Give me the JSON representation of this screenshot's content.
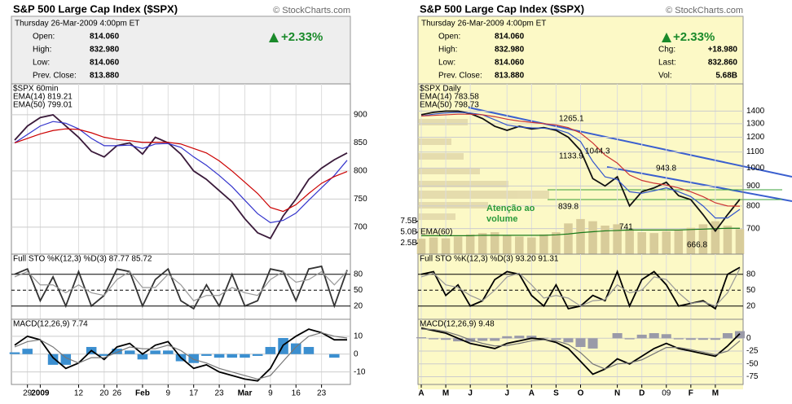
{
  "chart_data": [
    {
      "type": "line",
      "title": "S&P 500 Large Cap Index ($SPX)",
      "source": "© StockCharts.com",
      "date": "Thursday 26-Mar-2009 4:00pm ET",
      "quote": {
        "labels": [
          "Open:",
          "High:",
          "Low:",
          "Prev. Close:"
        ],
        "values": [
          "814.060",
          "832.980",
          "814.060",
          "813.880"
        ]
      },
      "change": "+2.33%",
      "categories": [
        null,
        "29",
        "2009",
        null,
        null,
        "12",
        null,
        "20",
        "26",
        null,
        "Feb",
        null,
        "9",
        null,
        "17",
        null,
        "23",
        null,
        "Mar",
        null,
        "9",
        null,
        "16",
        null,
        "23",
        null,
        null
      ],
      "panels": [
        {
          "title": "$SPX 60min",
          "ylim": [
            652,
            955
          ],
          "yticks": [
            900,
            850,
            800,
            750,
            700
          ],
          "grid": true,
          "series": [
            {
              "color": "#3a1a3a",
              "values": [
                855,
                880,
                895,
                900,
                880,
                860,
                835,
                825,
                845,
                850,
                830,
                860,
                850,
                830,
                800,
                785,
                765,
                745,
                715,
                690,
                680,
                720,
                750,
                785,
                805,
                820,
                832
              ]
            },
            {
              "name": "EMA(14) 819.21",
              "color": "#3333cc",
              "values": [
                850,
                865,
                880,
                888,
                885,
                875,
                858,
                845,
                845,
                846,
                840,
                848,
                849,
                842,
                825,
                810,
                792,
                772,
                748,
                724,
                708,
                712,
                725,
                748,
                770,
                792,
                819
              ]
            },
            {
              "name": "EMA(50) 799.01",
              "color": "#cc0000",
              "values": [
                850,
                858,
                866,
                872,
                875,
                874,
                868,
                860,
                856,
                854,
                851,
                851,
                851,
                848,
                840,
                832,
                818,
                800,
                780,
                760,
                735,
                728,
                740,
                760,
                778,
                790,
                799
              ]
            }
          ]
        },
        {
          "title": "Full STO %K(12,3) %D(3) 87.77 85.72",
          "ylim": [
            -5,
            118
          ],
          "yticks": [
            80,
            50,
            20
          ],
          "series": [
            {
              "color": "#333",
              "values": [
                80,
                90,
                30,
                75,
                20,
                85,
                20,
                40,
                90,
                85,
                20,
                70,
                90,
                30,
                15,
                60,
                20,
                80,
                20,
                30,
                90,
                85,
                30,
                90,
                95,
                20,
                88
              ]
            },
            {
              "color": "#999",
              "values": [
                75,
                85,
                60,
                60,
                45,
                60,
                45,
                40,
                70,
                85,
                55,
                55,
                80,
                60,
                30,
                40,
                40,
                55,
                45,
                40,
                70,
                85,
                65,
                70,
                85,
                60,
                86
              ]
            }
          ]
        },
        {
          "title": "MACD(12,26,9) 7.74",
          "ylim": [
            -17,
            19.5
          ],
          "yticks": [
            10,
            0,
            -10
          ],
          "series": [
            {
              "kind": "bar",
              "color": "#3b8fd0",
              "values": [
                1,
                3,
                0,
                -6,
                -6,
                0,
                4,
                -1,
                3,
                2,
                -3,
                2,
                2,
                -4,
                -5,
                -1,
                -2,
                -2,
                -2,
                -1,
                4,
                9,
                6,
                4,
                0,
                -2,
                0
              ]
            },
            {
              "color": "#000",
              "values": [
                5,
                10,
                8,
                -2,
                -8,
                -5,
                2,
                -3,
                4,
                6,
                0,
                5,
                7,
                -2,
                -8,
                -6,
                -10,
                -12,
                -14,
                -15,
                -8,
                5,
                10,
                14,
                12,
                8,
                8
              ]
            },
            {
              "color": "#777",
              "values": [
                4,
                7,
                8,
                4,
                -2,
                -5,
                -2,
                -2,
                1,
                4,
                3,
                3,
                5,
                2,
                -3,
                -5,
                -8,
                -10,
                -12,
                -14,
                -12,
                -4,
                4,
                10,
                12,
                10,
                9
              ]
            }
          ]
        }
      ]
    },
    {
      "type": "line",
      "title": "S&P 500 Large Cap Index ($SPX)",
      "source": "© StockCharts.com",
      "date": "Thursday 26-Mar-2009 4:00pm ET",
      "quote": {
        "labels": [
          "Open:",
          "High:",
          "Low:",
          "Prev. Close:"
        ],
        "values": [
          "814.060",
          "832.980",
          "814.060",
          "813.880"
        ]
      },
      "quote2": {
        "labels": [
          "Chg:",
          "Last:",
          "Vol:"
        ],
        "values": [
          "+18.980",
          "832.860",
          "5.68B"
        ]
      },
      "change": "+2.33%",
      "categories": [
        "A",
        null,
        "M",
        null,
        "J",
        null,
        null,
        "J",
        null,
        "A",
        null,
        "S",
        null,
        "O",
        null,
        null,
        "N",
        null,
        "D",
        null,
        "09",
        null,
        "F",
        null,
        "M",
        null,
        null
      ],
      "annotations": [
        1265.1,
        1133.9,
        1044.3,
        943.8,
        839.8,
        741.0,
        666.8
      ],
      "note": [
        "Atenção ao",
        "volume"
      ],
      "panels": [
        {
          "title": "$SPX Daily",
          "ylim": [
            602,
            1644
          ],
          "log": true,
          "yticks": [
            1400,
            1300,
            1200,
            1100,
            1000,
            900,
            800,
            700
          ],
          "volume": {
            "ylim": [
              0,
              38.8
            ],
            "color": "#d8cc9a",
            "yticks": [
              {
                "value": 7.5,
                "label": "7.5B"
              },
              {
                "value": 5.0,
                "label": "5.0B"
              },
              {
                "value": 2.5,
                "label": "2.5B"
              }
            ],
            "values": [
              3.5,
              3.8,
              3.6,
              4.0,
              4.5,
              4.8,
              5.0,
              4.2,
              4.0,
              3.8,
              4.5,
              5.0,
              7.0,
              8.0,
              7.5,
              6.5,
              6.8,
              5.8,
              5.0,
              4.8,
              5.2,
              5.5,
              6.0,
              6.8,
              7.5,
              6.5,
              5.7
            ],
            "ema": {
              "name": "EMA(60)",
              "color": "#1a7a1a",
              "values": [
                4.2,
                4.2,
                4.2,
                4.2,
                4.2,
                4.3,
                4.3,
                4.3,
                4.3,
                4.3,
                4.3,
                4.4,
                4.6,
                4.9,
                5.1,
                5.3,
                5.4,
                5.5,
                5.5,
                5.5,
                5.5,
                5.5,
                5.6,
                5.7,
                5.8,
                5.9,
                5.9
              ]
            }
          },
          "series": [
            {
              "color": "#111",
              "values": [
                1370,
                1390,
                1400,
                1400,
                1380,
                1340,
                1280,
                1250,
                1280,
                1260,
                1270,
                1250,
                1200,
                1110,
                940,
                900,
                950,
                800,
                870,
                890,
                920,
                850,
                830,
                760,
                690,
                760,
                832
              ]
            },
            {
              "name": "EMA(14) 783.58",
              "color": "#3355cc",
              "values": [
                1360,
                1375,
                1385,
                1390,
                1385,
                1370,
                1330,
                1290,
                1275,
                1268,
                1266,
                1258,
                1230,
                1170,
                1040,
                950,
                935,
                870,
                862,
                875,
                890,
                870,
                845,
                800,
                745,
                745,
                784
              ]
            },
            {
              "name": "EMA(50) 798.73",
              "color": "#cc3333",
              "values": [
                1360,
                1365,
                1370,
                1375,
                1375,
                1370,
                1355,
                1335,
                1320,
                1310,
                1300,
                1290,
                1270,
                1230,
                1160,
                1080,
                1030,
                960,
                930,
                915,
                905,
                890,
                870,
                845,
                815,
                800,
                799
              ]
            }
          ]
        },
        {
          "title": "Full STO %K(12,3) %D(3) 93.20 91.31",
          "ylim": [
            -5,
            118
          ],
          "yticks": [
            80,
            50,
            20
          ],
          "series": [
            {
              "color": "#000",
              "values": [
                80,
                85,
                40,
                60,
                20,
                30,
                70,
                85,
                80,
                40,
                20,
                60,
                15,
                20,
                40,
                30,
                85,
                20,
                70,
                85,
                60,
                20,
                25,
                30,
                15,
                80,
                93
              ]
            },
            {
              "color": "#999",
              "values": [
                75,
                82,
                60,
                55,
                40,
                30,
                50,
                75,
                82,
                60,
                35,
                40,
                35,
                20,
                30,
                32,
                60,
                45,
                50,
                75,
                70,
                45,
                25,
                28,
                20,
                45,
                91
              ]
            }
          ]
        },
        {
          "title": "MACD(12,26,9) 9.48",
          "ylim": [
            -90,
            37
          ],
          "yticks": [
            0,
            -25,
            -50,
            -75
          ],
          "series": [
            {
              "kind": "bar",
              "color": "#9a9aa8",
              "values": [
                2,
                -2,
                -3,
                -6,
                -7,
                -5,
                -5,
                4,
                5,
                5,
                1,
                -3,
                -8,
                -17,
                -20,
                0,
                10,
                -2,
                7,
                10,
                8,
                -2,
                -3,
                -3,
                -3,
                10,
                14
              ]
            },
            {
              "color": "#000",
              "values": [
                20,
                15,
                10,
                0,
                -10,
                -15,
                -20,
                -10,
                -5,
                0,
                -2,
                -8,
                -20,
                -45,
                -70,
                -60,
                -40,
                -50,
                -35,
                -20,
                -10,
                -20,
                -25,
                -30,
                -35,
                -15,
                9
              ]
            },
            {
              "color": "#777",
              "values": [
                18,
                17,
                13,
                6,
                -3,
                -10,
                -15,
                -14,
                -10,
                -5,
                -3,
                -5,
                -12,
                -28,
                -50,
                -60,
                -50,
                -48,
                -42,
                -30,
                -18,
                -18,
                -22,
                -27,
                -32,
                -25,
                -5
              ]
            }
          ]
        }
      ]
    }
  ]
}
